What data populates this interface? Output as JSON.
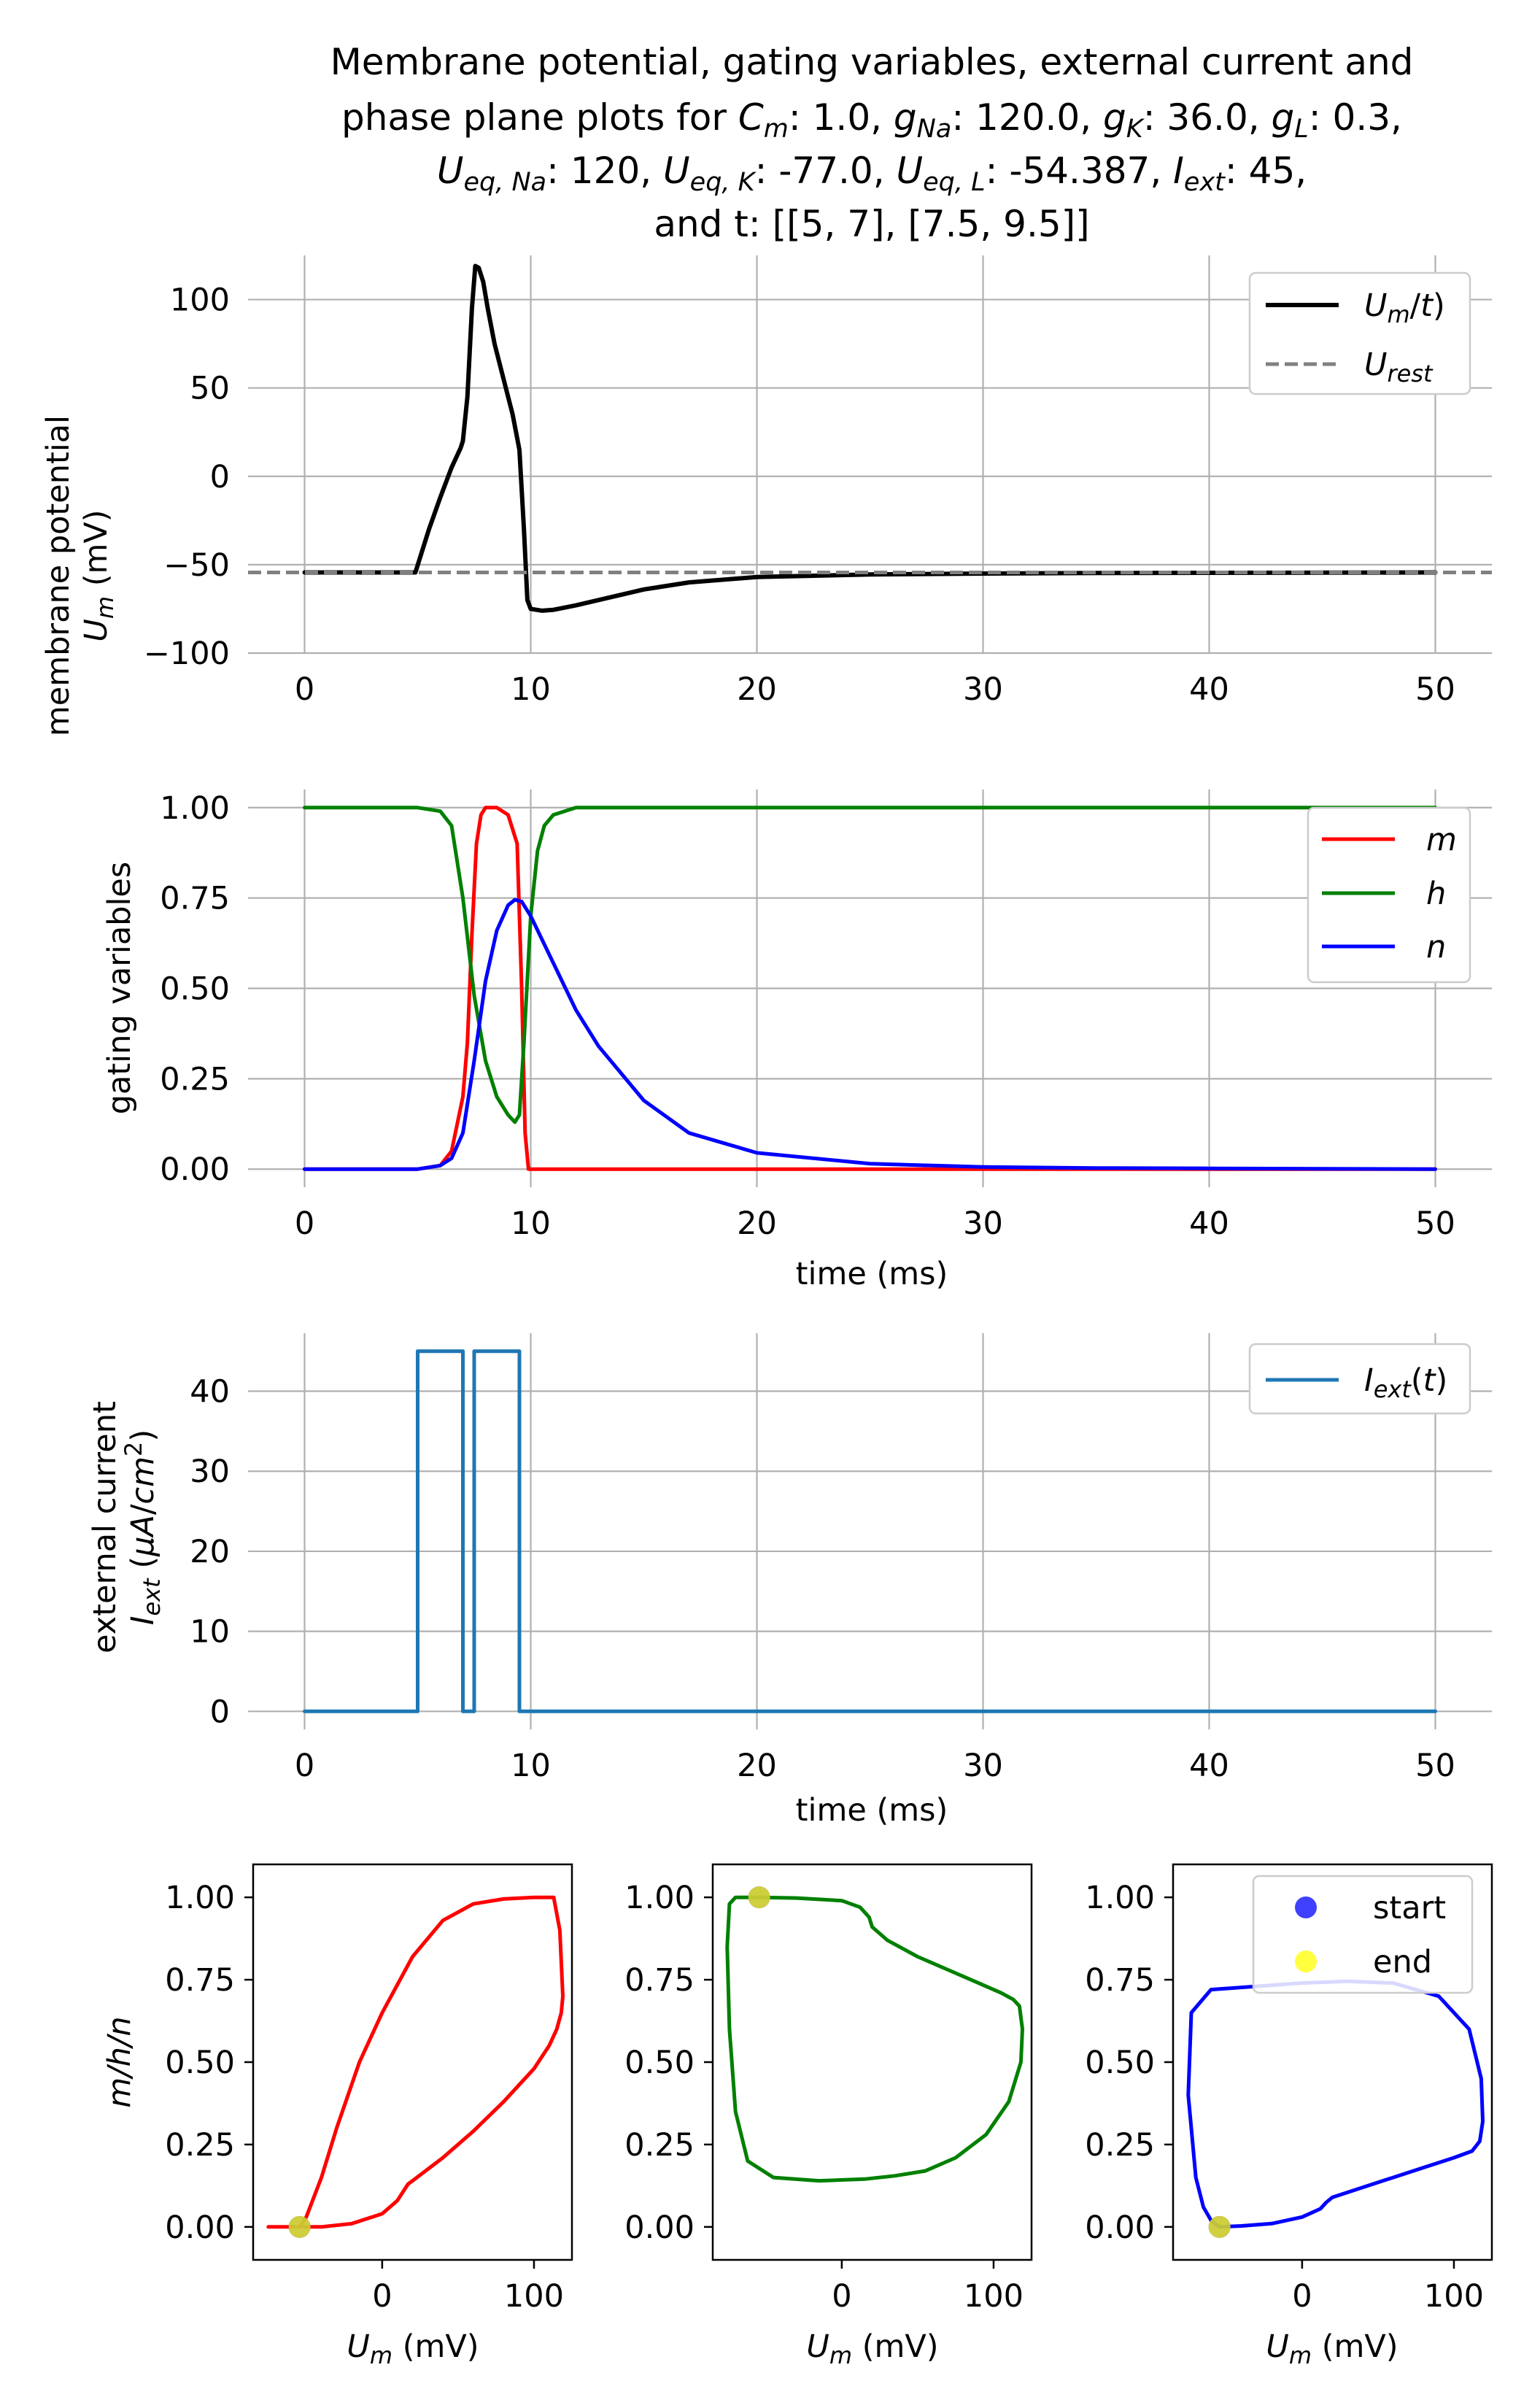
{
  "title": {
    "line1": "Membrane potential, gating variables, external current and",
    "line2": "phase plane plots for C_m: 1.0, g_Na: 120.0, g_K: 36.0, g_L: 0.3,",
    "line3": "U_eq,Na: 120, U_eq,K: -77.0, U_eq,L: -54.387, I_ext: 45,",
    "line4": "and t: [[5, 7], [7.5, 9.5]]"
  },
  "colors": {
    "membrane": "#000000",
    "rest": "#808080",
    "m": "#ff0000",
    "h": "#008000",
    "n": "#0000ff",
    "current": "#1f77b4",
    "start": "#0000ff",
    "end": "#ffff00",
    "grid": "#b0b0b0"
  },
  "chart_data": [
    {
      "type": "line",
      "id": "membrane",
      "ylabel_line1": "membrane potential",
      "ylabel_line2": "U_m (mV)",
      "xlabel": "",
      "xlim": [
        -2.5,
        52.5
      ],
      "ylim": [
        -100,
        125
      ],
      "xticks": [
        0,
        10,
        20,
        30,
        40,
        50
      ],
      "yticks": [
        -100,
        -50,
        0,
        50,
        100
      ],
      "grid": true,
      "legend_position": "top-right",
      "series": [
        {
          "name": "U_m/t",
          "style": "solid",
          "x": [
            0,
            4.9,
            5.5,
            6,
            6.5,
            6.9,
            7.0,
            7.2,
            7.4,
            7.55,
            7.7,
            7.9,
            8.1,
            8.4,
            8.8,
            9.2,
            9.5,
            9.7,
            9.85,
            10.0,
            10.5,
            11,
            12,
            13,
            15,
            17,
            20,
            25,
            30,
            35,
            40,
            45,
            50
          ],
          "y": [
            -54.4,
            -54.4,
            -30,
            -12,
            5,
            16,
            20,
            45,
            95,
            119,
            118,
            110,
            95,
            75,
            55,
            35,
            15,
            -30,
            -70,
            -75,
            -76,
            -75.5,
            -73,
            -70,
            -64,
            -60,
            -57,
            -55.5,
            -55,
            -54.7,
            -54.6,
            -54.5,
            -54.4
          ]
        },
        {
          "name": "U_rest",
          "style": "dashed",
          "x": [
            -2.5,
            52.5
          ],
          "y": [
            -54.4,
            -54.4
          ]
        }
      ]
    },
    {
      "type": "line",
      "id": "gating",
      "ylabel": "gating variables",
      "xlabel": "time (ms)",
      "xlim": [
        -2.5,
        52.5
      ],
      "ylim": [
        -0.05,
        1.05
      ],
      "xticks": [
        0,
        10,
        20,
        30,
        40,
        50
      ],
      "yticks": [
        0.0,
        0.25,
        0.5,
        0.75,
        1.0
      ],
      "ytick_labels": [
        "0.00",
        "0.25",
        "0.50",
        "0.75",
        "1.00"
      ],
      "grid": true,
      "legend_position": "top-right",
      "series": [
        {
          "name": "m",
          "x": [
            0,
            5,
            6,
            6.5,
            7,
            7.2,
            7.4,
            7.6,
            7.8,
            8.0,
            8.5,
            9.0,
            9.4,
            9.6,
            9.75,
            9.9,
            10.2,
            12,
            20,
            30,
            40,
            50
          ],
          "y": [
            0.0,
            0.0,
            0.01,
            0.05,
            0.2,
            0.35,
            0.65,
            0.9,
            0.98,
            1.0,
            1.0,
            0.98,
            0.9,
            0.5,
            0.1,
            0.0,
            0.0,
            0.0,
            0.0,
            0.0,
            0.0,
            0.0
          ]
        },
        {
          "name": "h",
          "x": [
            0,
            5,
            6,
            6.5,
            7,
            7.5,
            8,
            8.5,
            9,
            9.3,
            9.5,
            9.7,
            10.0,
            10.3,
            10.6,
            11,
            12,
            14,
            20,
            30,
            40,
            50
          ],
          "y": [
            1.0,
            1.0,
            0.99,
            0.95,
            0.75,
            0.48,
            0.3,
            0.2,
            0.15,
            0.13,
            0.15,
            0.35,
            0.7,
            0.88,
            0.95,
            0.98,
            1.0,
            1.0,
            1.0,
            1.0,
            1.0,
            1.0
          ]
        },
        {
          "name": "n",
          "x": [
            0,
            5,
            6,
            6.5,
            7,
            7.5,
            8,
            8.5,
            9,
            9.3,
            9.6,
            10,
            11,
            12,
            13,
            15,
            17,
            20,
            25,
            30,
            35,
            40,
            50
          ],
          "y": [
            0.0,
            0.0,
            0.01,
            0.03,
            0.1,
            0.3,
            0.52,
            0.66,
            0.73,
            0.745,
            0.74,
            0.7,
            0.57,
            0.44,
            0.34,
            0.19,
            0.1,
            0.045,
            0.015,
            0.006,
            0.003,
            0.002,
            0.0
          ]
        }
      ]
    },
    {
      "type": "line",
      "id": "current",
      "ylabel_line1": "external current",
      "ylabel_line2": "I_ext (µA/cm²)",
      "xlabel": "time (ms)",
      "xlim": [
        -2.5,
        52.5
      ],
      "ylim": [
        -2.25,
        47.25
      ],
      "xticks": [
        0,
        10,
        20,
        30,
        40,
        50
      ],
      "yticks": [
        0,
        10,
        20,
        30,
        40
      ],
      "grid": true,
      "legend_position": "top-right",
      "series": [
        {
          "name": "I_ext(t)",
          "x": [
            0,
            5,
            5,
            7,
            7,
            7.5,
            7.5,
            9.5,
            9.5,
            50
          ],
          "y": [
            0,
            0,
            45,
            45,
            0,
            0,
            45,
            45,
            0,
            0
          ]
        }
      ]
    },
    {
      "type": "line",
      "id": "phase-m",
      "xlabel": "U_m (mV)",
      "ylabel": "m/h/n",
      "xlim": [
        -85,
        125
      ],
      "ylim": [
        -0.1,
        1.1
      ],
      "xticks": [
        0,
        100
      ],
      "yticks": [
        0.0,
        0.25,
        0.5,
        0.75,
        1.0
      ],
      "ytick_labels": [
        "0.00",
        "0.25",
        "0.50",
        "0.75",
        "1.00"
      ],
      "grid": false,
      "series": [
        {
          "name": "m",
          "x": [
            -54.4,
            -50,
            -40,
            -30,
            -15,
            0,
            20,
            40,
            60,
            80,
            100,
            113,
            117,
            119,
            118,
            115,
            110,
            100,
            80,
            60,
            40,
            20,
            17,
            10,
            0,
            -20,
            -40,
            -60,
            -75,
            -54.4
          ],
          "y": [
            0.0,
            0.03,
            0.15,
            0.3,
            0.5,
            0.65,
            0.82,
            0.93,
            0.98,
            0.995,
            1.0,
            1.0,
            0.9,
            0.7,
            0.65,
            0.6,
            0.55,
            0.48,
            0.38,
            0.29,
            0.21,
            0.14,
            0.13,
            0.08,
            0.04,
            0.01,
            0.0,
            0.0,
            0.0,
            0.0
          ]
        }
      ],
      "markers": {
        "start": [
          -54.4,
          0.0
        ],
        "end": [
          -54.4,
          0.0
        ]
      }
    },
    {
      "type": "line",
      "id": "phase-h",
      "xlabel": "U_m (mV)",
      "xlim": [
        -85,
        125
      ],
      "ylim": [
        -0.1,
        1.1
      ],
      "xticks": [
        0,
        100
      ],
      "yticks": [
        0.0,
        0.25,
        0.5,
        0.75,
        1.0
      ],
      "ytick_labels": [
        "0.00",
        "0.25",
        "0.50",
        "0.75",
        "1.00"
      ],
      "grid": false,
      "series": [
        {
          "name": "h",
          "x": [
            -54.4,
            -30,
            0,
            12,
            18,
            20,
            30,
            50,
            70,
            90,
            105,
            113,
            117,
            119,
            118,
            110,
            95,
            75,
            55,
            35,
            15,
            -15,
            -45,
            -62,
            -70,
            -74,
            -75.5,
            -74,
            -70,
            -54.4
          ],
          "y": [
            1.0,
            0.998,
            0.99,
            0.97,
            0.94,
            0.91,
            0.87,
            0.82,
            0.78,
            0.74,
            0.71,
            0.69,
            0.67,
            0.6,
            0.5,
            0.38,
            0.28,
            0.21,
            0.17,
            0.155,
            0.145,
            0.14,
            0.15,
            0.2,
            0.35,
            0.6,
            0.85,
            0.98,
            1.0,
            1.0
          ]
        }
      ],
      "markers": {
        "start": [
          -54.4,
          1.0
        ],
        "end": [
          -54.4,
          1.0
        ]
      }
    },
    {
      "type": "line",
      "id": "phase-n",
      "xlabel": "U_m (mV)",
      "xlim": [
        -85,
        125
      ],
      "ylim": [
        -0.1,
        1.1
      ],
      "xticks": [
        0,
        100
      ],
      "yticks": [
        0.0,
        0.25,
        0.5,
        0.75,
        1.0
      ],
      "ytick_labels": [
        "0.00",
        "0.25",
        "0.50",
        "0.75",
        "1.00"
      ],
      "grid": false,
      "legend_position": "top-right",
      "series": [
        {
          "name": "n",
          "x": [
            -54.4,
            -40,
            -20,
            0,
            12,
            16,
            20,
            40,
            60,
            80,
            100,
            112,
            117,
            119,
            118,
            110,
            90,
            60,
            30,
            0,
            -30,
            -60,
            -73,
            -75,
            -70,
            -65,
            -60,
            -56,
            -54.4
          ],
          "y": [
            0.0,
            0.003,
            0.01,
            0.03,
            0.055,
            0.075,
            0.09,
            0.12,
            0.15,
            0.18,
            0.21,
            0.23,
            0.26,
            0.32,
            0.45,
            0.6,
            0.7,
            0.74,
            0.745,
            0.74,
            0.73,
            0.72,
            0.65,
            0.4,
            0.15,
            0.06,
            0.02,
            0.005,
            0.0
          ]
        }
      ],
      "markers": {
        "start": [
          -54.4,
          0.0
        ],
        "end": [
          -54.4,
          0.0
        ]
      },
      "legend": {
        "start": "start",
        "end": "end"
      }
    }
  ]
}
